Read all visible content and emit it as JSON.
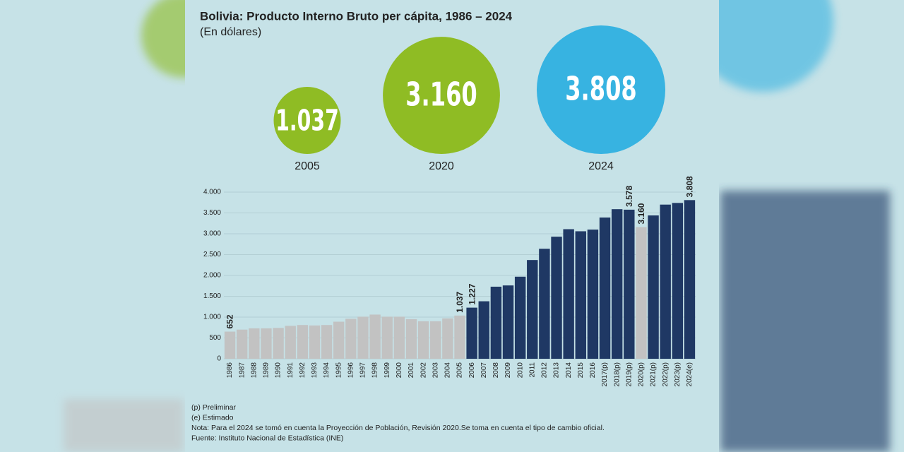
{
  "chart_data": {
    "type": "bar",
    "title": "Bolivia: Producto Interno Bruto per cápita, 1986 – 2024",
    "subtitle": "(En dólares)",
    "highlights": [
      {
        "value": 1037,
        "label": "1.037",
        "year": "2005",
        "color": "#8fbc24"
      },
      {
        "value": 3160,
        "label": "3.160",
        "year": "2020",
        "color": "#8fbc24"
      },
      {
        "value": 3808,
        "label": "3.808",
        "year": "2024",
        "color": "#37b3e1"
      }
    ],
    "categories": [
      "1986",
      "1987",
      "1988",
      "1989",
      "1990",
      "1991",
      "1992",
      "1993",
      "1994",
      "1995",
      "1996",
      "1997",
      "1998",
      "1999",
      "2000",
      "2001",
      "2002",
      "2003",
      "2004",
      "2005",
      "2006",
      "2007",
      "2008",
      "2009",
      "2010",
      "2011",
      "2012",
      "2013",
      "2014",
      "2015",
      "2016",
      "2017(p)",
      "2018(p)",
      "2019(p)",
      "2020(p)",
      "2021(p)",
      "2022(p)",
      "2023(p)",
      "2024(e)"
    ],
    "values": [
      652,
      700,
      730,
      730,
      740,
      790,
      810,
      800,
      810,
      890,
      960,
      1010,
      1060,
      1010,
      1010,
      950,
      900,
      900,
      970,
      1037,
      1227,
      1380,
      1730,
      1760,
      1970,
      2370,
      2640,
      2930,
      3110,
      3060,
      3100,
      3390,
      3590,
      3578,
      3160,
      3440,
      3700,
      3740,
      3808
    ],
    "value_labels": [
      "652",
      null,
      null,
      null,
      null,
      null,
      null,
      null,
      null,
      null,
      null,
      null,
      null,
      null,
      null,
      null,
      null,
      null,
      null,
      "1.037",
      "1.227",
      null,
      null,
      null,
      null,
      null,
      null,
      null,
      null,
      null,
      null,
      null,
      null,
      "3.578",
      "3.160",
      null,
      null,
      null,
      "3.808"
    ],
    "colors": [
      "#c2c2c2",
      "#c2c2c2",
      "#c2c2c2",
      "#c2c2c2",
      "#c2c2c2",
      "#c2c2c2",
      "#c2c2c2",
      "#c2c2c2",
      "#c2c2c2",
      "#c2c2c2",
      "#c2c2c2",
      "#c2c2c2",
      "#c2c2c2",
      "#c2c2c2",
      "#c2c2c2",
      "#c2c2c2",
      "#c2c2c2",
      "#c2c2c2",
      "#c2c2c2",
      "#c2c2c2",
      "#1f3864",
      "#1f3864",
      "#1f3864",
      "#1f3864",
      "#1f3864",
      "#1f3864",
      "#1f3864",
      "#1f3864",
      "#1f3864",
      "#1f3864",
      "#1f3864",
      "#1f3864",
      "#1f3864",
      "#1f3864",
      "#c2c2c2",
      "#1f3864",
      "#1f3864",
      "#1f3864",
      "#1f3864"
    ],
    "ylim": [
      0,
      4000
    ],
    "yticks": [
      0,
      500,
      {
        "value": 1000,
        "label": "1.000"
      },
      {
        "value": 1500,
        "label": "1.500"
      },
      {
        "value": 2000,
        "label": "2.000"
      },
      {
        "value": 2500,
        "label": "2.500"
      },
      {
        "value": 3000,
        "label": "3.000"
      },
      {
        "value": 3500,
        "label": "3.500"
      },
      {
        "value": 4000,
        "label": "4.000"
      }
    ],
    "grid": true,
    "notes": [
      "(p) Preliminar",
      "(e) Estimado",
      "Nota: Para el 2024 se tomó en cuenta la Proyección de Población, Revisión 2020.Se toma en cuenta el tipo de cambio oficial.",
      "Fuente: Instituto Nacional de Estadística (INE)"
    ]
  }
}
